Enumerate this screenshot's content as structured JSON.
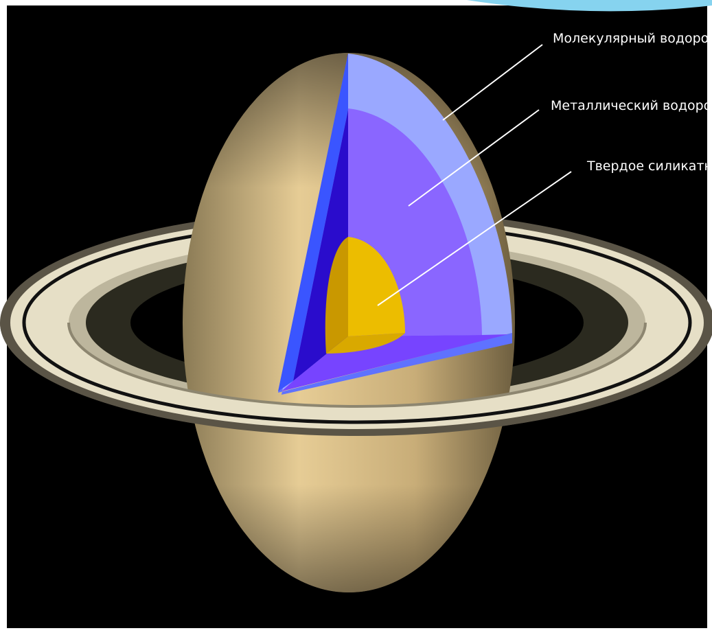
{
  "labels": [
    "Молекулярный водород и",
    "Металлический водород и",
    "Твердое силикатное"
  ]
}
